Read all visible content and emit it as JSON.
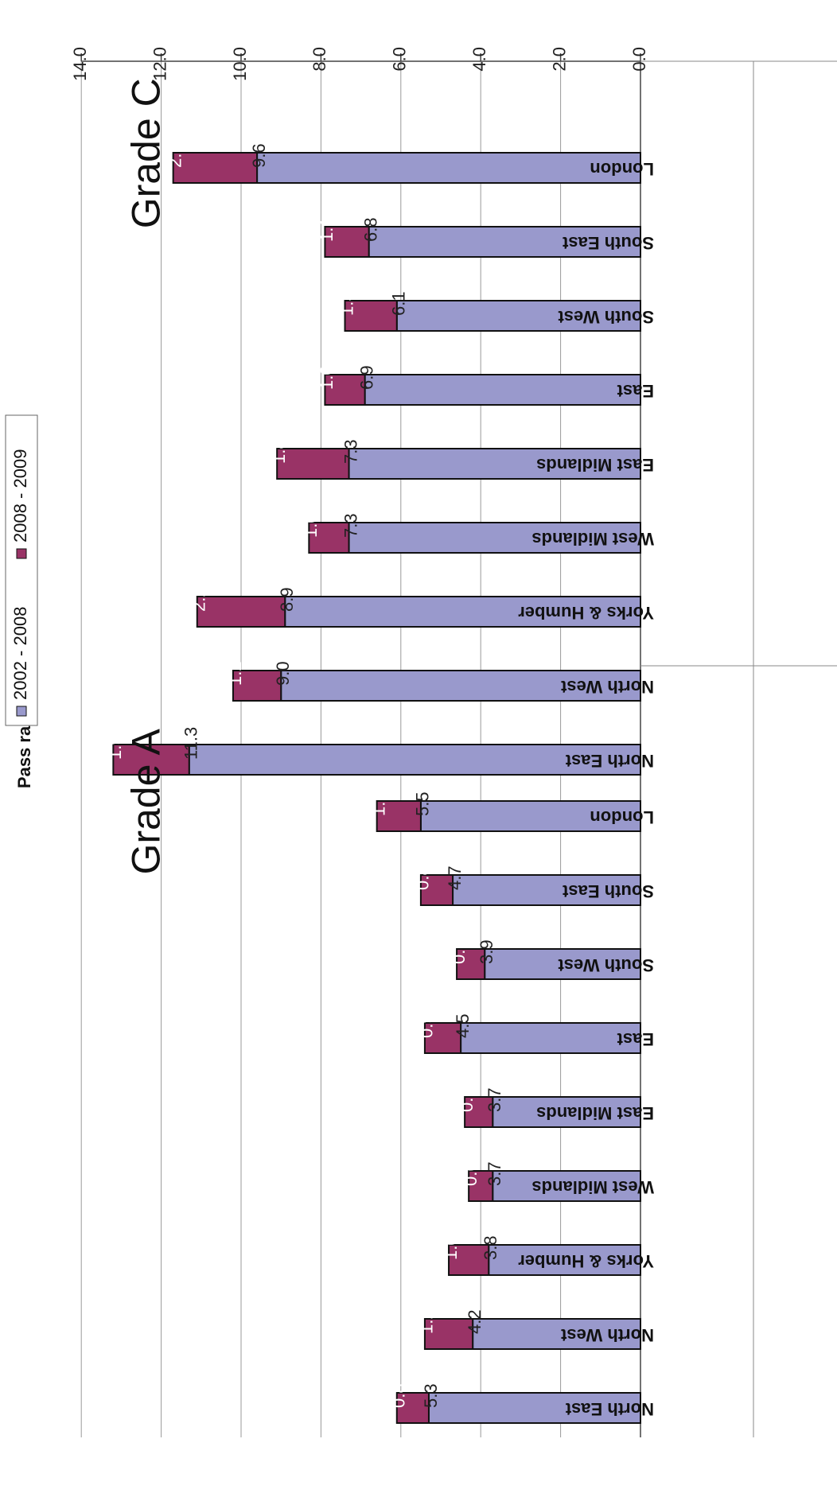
{
  "chart_data": {
    "type": "bar",
    "orientation": "horizontal-stacked",
    "rotation_deg": 180,
    "ylabel": "Pass rate (%)",
    "xlim": [
      0,
      14
    ],
    "ticks": [
      "0.0",
      "2.0",
      "4.0",
      "6.0",
      "8.0",
      "10.0",
      "12.0",
      "14.0"
    ],
    "grid": true,
    "legend": {
      "position": "top",
      "entries": [
        {
          "name": "2002 - 2008",
          "color": "#9999cc"
        },
        {
          "name": "2008 - 2009",
          "color": "#993366"
        }
      ]
    },
    "groups": [
      {
        "label": "Grade A",
        "categories": [
          "North East",
          "North West",
          "Yorks & Humber",
          "West Midlands",
          "East Midlands",
          "East",
          "South West",
          "South East",
          "London"
        ],
        "series": [
          {
            "name": "2002 - 2008",
            "values": [
              5.3,
              4.2,
              3.8,
              3.7,
              3.7,
              4.5,
              3.9,
              4.7,
              5.5
            ],
            "labels": [
              "5.3",
              "4.2",
              "3.8",
              "3.7",
              "3.7",
              "4.5",
              "3.9",
              "4.7",
              "5.5"
            ]
          },
          {
            "name": "2008 - 2009",
            "values": [
              0.8,
              1.2,
              1.0,
              0.6,
              0.7,
              0.9,
              0.7,
              0.8,
              1.1
            ],
            "labels": [
              "0.8",
              "1.2",
              "1.0",
              "0.6",
              "0.7",
              "0.9",
              "0.7",
              "0.8",
              "1.1"
            ]
          }
        ]
      },
      {
        "label": "Grade C",
        "categories": [
          "North East",
          "North West",
          "Yorks & Humber",
          "West Midlands",
          "East Midlands",
          "East",
          "South West",
          "South East",
          "London"
        ],
        "series": [
          {
            "name": "2002 - 2008",
            "values": [
              11.3,
              9.0,
              8.9,
              7.3,
              7.3,
              6.9,
              6.1,
              6.8,
              9.6
            ],
            "labels": [
              "11.3",
              "9.0",
              "8.9",
              "7.3",
              "7.3",
              "6.9",
              "6.1",
              "6.8",
              "9.6"
            ]
          },
          {
            "name": "2008 - 2009",
            "values": [
              1.9,
              1.2,
              2.2,
              1.0,
              1.8,
              1.0,
              1.3,
              1.1,
              2.1
            ],
            "labels": [
              "1.9",
              "1.2",
              "2.2",
              "1.0",
              "1.8",
              "1.0",
              "1.3",
              "1.1",
              "2.1"
            ]
          }
        ]
      }
    ]
  }
}
